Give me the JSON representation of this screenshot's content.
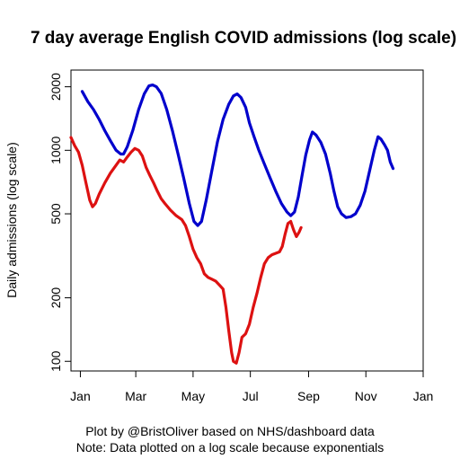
{
  "chart_data": {
    "type": "line",
    "title": "7 day average English COVID admissions (log scale)",
    "xlabel": "",
    "ylabel": "Daily admissions (log scale)",
    "y_scale": "log",
    "ylim": [
      90,
      2400
    ],
    "xlim": [
      -10,
      365
    ],
    "y_ticks": [
      100,
      200,
      500,
      1000,
      2000
    ],
    "x_ticks": [
      {
        "label": "Jan",
        "day": 0
      },
      {
        "label": "Mar",
        "day": 59
      },
      {
        "label": "May",
        "day": 120
      },
      {
        "label": "Jul",
        "day": 181
      },
      {
        "label": "Sep",
        "day": 243
      },
      {
        "label": "Nov",
        "day": 304
      },
      {
        "label": "Jan",
        "day": 365
      }
    ],
    "grid": false,
    "legend": "none",
    "series": [
      {
        "color": "#0000CC",
        "points": [
          [
            2,
            1900
          ],
          [
            8,
            1700
          ],
          [
            14,
            1560
          ],
          [
            20,
            1400
          ],
          [
            26,
            1240
          ],
          [
            32,
            1110
          ],
          [
            38,
            1000
          ],
          [
            43,
            960
          ],
          [
            46,
            960
          ],
          [
            50,
            1040
          ],
          [
            56,
            1250
          ],
          [
            62,
            1560
          ],
          [
            68,
            1850
          ],
          [
            73,
            2020
          ],
          [
            77,
            2040
          ],
          [
            81,
            2000
          ],
          [
            86,
            1860
          ],
          [
            92,
            1560
          ],
          [
            98,
            1240
          ],
          [
            104,
            960
          ],
          [
            110,
            740
          ],
          [
            116,
            560
          ],
          [
            121,
            460
          ],
          [
            125,
            440
          ],
          [
            129,
            460
          ],
          [
            134,
            580
          ],
          [
            140,
            800
          ],
          [
            146,
            1100
          ],
          [
            152,
            1400
          ],
          [
            158,
            1650
          ],
          [
            163,
            1810
          ],
          [
            167,
            1850
          ],
          [
            171,
            1780
          ],
          [
            176,
            1600
          ],
          [
            180,
            1350
          ],
          [
            185,
            1160
          ],
          [
            190,
            1000
          ],
          [
            196,
            860
          ],
          [
            202,
            740
          ],
          [
            208,
            640
          ],
          [
            214,
            560
          ],
          [
            220,
            510
          ],
          [
            224,
            490
          ],
          [
            228,
            510
          ],
          [
            232,
            600
          ],
          [
            236,
            760
          ],
          [
            240,
            950
          ],
          [
            244,
            1120
          ],
          [
            247,
            1220
          ],
          [
            251,
            1180
          ],
          [
            256,
            1090
          ],
          [
            261,
            960
          ],
          [
            266,
            780
          ],
          [
            270,
            640
          ],
          [
            274,
            540
          ],
          [
            278,
            500
          ],
          [
            283,
            480
          ],
          [
            288,
            485
          ],
          [
            293,
            500
          ],
          [
            298,
            550
          ],
          [
            303,
            640
          ],
          [
            308,
            800
          ],
          [
            313,
            1000
          ],
          [
            317,
            1160
          ],
          [
            320,
            1130
          ],
          [
            324,
            1060
          ],
          [
            327,
            1000
          ],
          [
            330,
            880
          ],
          [
            333,
            820
          ]
        ]
      },
      {
        "color": "#DD1111",
        "points": [
          [
            -10,
            1150
          ],
          [
            -6,
            1050
          ],
          [
            -2,
            980
          ],
          [
            2,
            850
          ],
          [
            6,
            700
          ],
          [
            10,
            580
          ],
          [
            13,
            540
          ],
          [
            16,
            560
          ],
          [
            20,
            620
          ],
          [
            26,
            700
          ],
          [
            32,
            780
          ],
          [
            38,
            850
          ],
          [
            42,
            900
          ],
          [
            46,
            880
          ],
          [
            50,
            930
          ],
          [
            54,
            980
          ],
          [
            58,
            1020
          ],
          [
            62,
            1000
          ],
          [
            66,
            940
          ],
          [
            70,
            830
          ],
          [
            74,
            760
          ],
          [
            78,
            700
          ],
          [
            82,
            640
          ],
          [
            86,
            590
          ],
          [
            90,
            560
          ],
          [
            96,
            520
          ],
          [
            102,
            490
          ],
          [
            108,
            470
          ],
          [
            112,
            440
          ],
          [
            116,
            390
          ],
          [
            120,
            340
          ],
          [
            124,
            310
          ],
          [
            128,
            290
          ],
          [
            132,
            260
          ],
          [
            136,
            250
          ],
          [
            140,
            245
          ],
          [
            144,
            240
          ],
          [
            148,
            230
          ],
          [
            152,
            220
          ],
          [
            155,
            180
          ],
          [
            158,
            140
          ],
          [
            161,
            110
          ],
          [
            163,
            100
          ],
          [
            166,
            98
          ],
          [
            169,
            110
          ],
          [
            172,
            130
          ],
          [
            176,
            135
          ],
          [
            180,
            150
          ],
          [
            184,
            180
          ],
          [
            188,
            210
          ],
          [
            192,
            250
          ],
          [
            196,
            290
          ],
          [
            200,
            310
          ],
          [
            204,
            320
          ],
          [
            208,
            325
          ],
          [
            212,
            330
          ],
          [
            215,
            350
          ],
          [
            218,
            400
          ],
          [
            221,
            450
          ],
          [
            224,
            460
          ],
          [
            227,
            420
          ],
          [
            230,
            390
          ],
          [
            233,
            410
          ],
          [
            235,
            430
          ]
        ]
      }
    ]
  },
  "footer": {
    "line1": "Plot by @BristOliver based on NHS/dashboard data",
    "line2": "Note: Data plotted on a log scale because exponentials"
  }
}
